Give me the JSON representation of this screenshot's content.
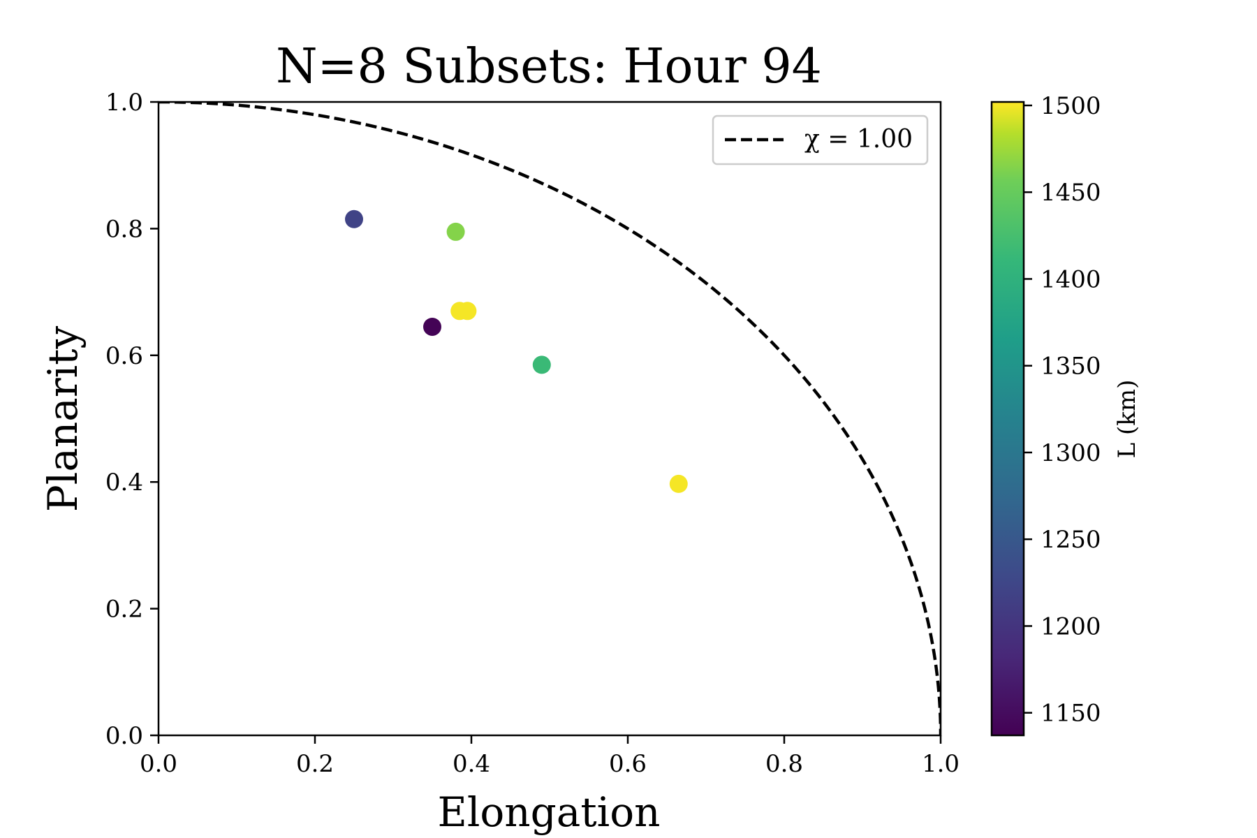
{
  "chart_data": {
    "type": "scatter",
    "title": "N=8 Subsets: Hour 94",
    "xlabel": "Elongation",
    "ylabel": "Planarity",
    "xlim": [
      0.0,
      1.0
    ],
    "ylim": [
      0.0,
      1.0
    ],
    "xticks": [
      "0.0",
      "0.2",
      "0.4",
      "0.6",
      "0.8",
      "1.0"
    ],
    "yticks": [
      "0.0",
      "0.2",
      "0.4",
      "0.6",
      "0.8",
      "1.0"
    ],
    "grid": false,
    "legend": {
      "position": "top-right",
      "entries": [
        {
          "label": "χ = 1.00",
          "style": "dashed",
          "color": "#000000"
        }
      ]
    },
    "reference_curve": {
      "label": "χ = 1.00",
      "equation": "x^2 + y^2 = 1"
    },
    "points": [
      {
        "x": 0.25,
        "y": 0.815,
        "L": 1220
      },
      {
        "x": 0.38,
        "y": 0.795,
        "L": 1465
      },
      {
        "x": 0.385,
        "y": 0.67,
        "L": 1500
      },
      {
        "x": 0.395,
        "y": 0.67,
        "L": 1500
      },
      {
        "x": 0.35,
        "y": 0.645,
        "L": 1140
      },
      {
        "x": 0.49,
        "y": 0.585,
        "L": 1415
      },
      {
        "x": 0.665,
        "y": 0.397,
        "L": 1500
      }
    ],
    "colorbar": {
      "label": "L (km)",
      "colormap": "viridis",
      "range": [
        1137,
        1502
      ],
      "ticks": [
        "1150",
        "1200",
        "1250",
        "1300",
        "1350",
        "1400",
        "1450",
        "1500"
      ],
      "tick_values": [
        1150,
        1200,
        1250,
        1300,
        1350,
        1400,
        1450,
        1500
      ]
    }
  }
}
